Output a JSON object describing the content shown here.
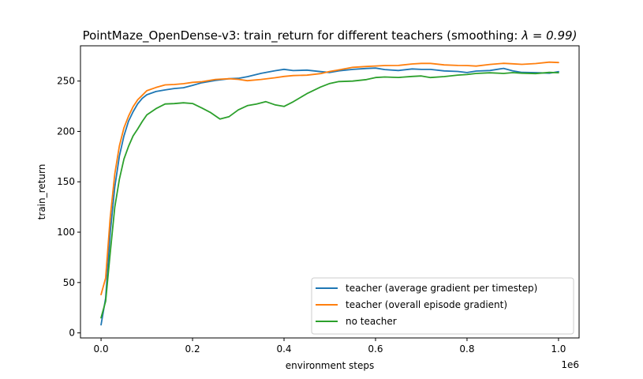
{
  "chart_data": {
    "type": "line",
    "title": "PointMaze_OpenDense-v3: train_return for different teachers (smoothing: ",
    "title_math": "λ = 0.99)",
    "xlabel": "environment steps",
    "ylabel": "train_return",
    "x_multiplier_label": "1e6",
    "xlim": [
      -0.045,
      1.045
    ],
    "ylim": [
      -5,
      285
    ],
    "x_ticks": [
      0.0,
      0.2,
      0.4,
      0.6,
      0.8,
      1.0
    ],
    "x_tick_labels": [
      "0.0",
      "0.2",
      "0.4",
      "0.6",
      "0.8",
      "1.0"
    ],
    "y_ticks": [
      0,
      50,
      100,
      150,
      200,
      250
    ],
    "y_tick_labels": [
      "0",
      "50",
      "100",
      "150",
      "200",
      "250"
    ],
    "grid": false,
    "legend_position": "lower-right",
    "series": [
      {
        "name": "teacher (average gradient per timestep)",
        "color": "#1f77b4",
        "x": [
          0.0,
          0.01,
          0.02,
          0.03,
          0.04,
          0.05,
          0.06,
          0.07,
          0.08,
          0.09,
          0.1,
          0.12,
          0.14,
          0.16,
          0.18,
          0.2,
          0.22,
          0.25,
          0.28,
          0.3,
          0.32,
          0.35,
          0.38,
          0.4,
          0.42,
          0.45,
          0.48,
          0.5,
          0.52,
          0.55,
          0.58,
          0.6,
          0.62,
          0.65,
          0.68,
          0.7,
          0.72,
          0.75,
          0.78,
          0.8,
          0.82,
          0.85,
          0.88,
          0.9,
          0.92,
          0.95,
          0.98,
          1.0
        ],
        "y": [
          8,
          35,
          100,
          145,
          175,
          195,
          210,
          220,
          228,
          233,
          236,
          239,
          241,
          243,
          244,
          246,
          248,
          250,
          252,
          253,
          255,
          258,
          260,
          261,
          260,
          261,
          260,
          259,
          260,
          261,
          262,
          263,
          262,
          261,
          262,
          261,
          261,
          260,
          260,
          259,
          260,
          260,
          262,
          260,
          259,
          259,
          258,
          259
        ]
      },
      {
        "name": "teacher (overall episode gradient)",
        "color": "#ff7f0e",
        "x": [
          0.0,
          0.01,
          0.02,
          0.03,
          0.04,
          0.05,
          0.06,
          0.07,
          0.08,
          0.09,
          0.1,
          0.12,
          0.14,
          0.16,
          0.18,
          0.2,
          0.22,
          0.25,
          0.28,
          0.3,
          0.32,
          0.35,
          0.38,
          0.4,
          0.42,
          0.45,
          0.48,
          0.5,
          0.52,
          0.55,
          0.58,
          0.6,
          0.62,
          0.65,
          0.68,
          0.7,
          0.72,
          0.75,
          0.78,
          0.8,
          0.82,
          0.85,
          0.88,
          0.9,
          0.92,
          0.95,
          0.98,
          1.0
        ],
        "y": [
          38,
          55,
          115,
          158,
          185,
          203,
          215,
          225,
          232,
          236,
          240,
          243,
          246,
          247,
          248,
          249,
          249,
          251,
          252,
          252,
          251,
          252,
          253,
          254,
          255,
          256,
          258,
          260,
          261,
          263,
          264,
          265,
          266,
          266,
          267,
          267,
          267,
          266,
          266,
          266,
          265,
          266,
          267,
          267,
          267,
          268,
          269,
          268
        ]
      },
      {
        "name": "no teacher",
        "color": "#2ca02c",
        "x": [
          0.0,
          0.01,
          0.02,
          0.03,
          0.04,
          0.05,
          0.06,
          0.07,
          0.08,
          0.09,
          0.1,
          0.12,
          0.14,
          0.16,
          0.18,
          0.2,
          0.22,
          0.24,
          0.26,
          0.28,
          0.3,
          0.32,
          0.34,
          0.36,
          0.38,
          0.4,
          0.42,
          0.45,
          0.48,
          0.5,
          0.52,
          0.55,
          0.58,
          0.6,
          0.62,
          0.65,
          0.68,
          0.7,
          0.72,
          0.75,
          0.78,
          0.8,
          0.82,
          0.85,
          0.88,
          0.9,
          0.92,
          0.95,
          0.98,
          1.0
        ],
        "y": [
          15,
          32,
          80,
          125,
          152,
          172,
          185,
          196,
          203,
          210,
          216,
          222,
          227,
          228,
          229,
          228,
          223,
          218,
          212,
          215,
          222,
          226,
          227,
          229,
          226,
          225,
          230,
          238,
          244,
          247,
          249,
          250,
          252,
          254,
          254,
          253,
          254,
          255,
          254,
          255,
          256,
          256,
          257,
          258,
          258,
          259,
          258,
          257,
          258,
          258
        ]
      }
    ]
  }
}
